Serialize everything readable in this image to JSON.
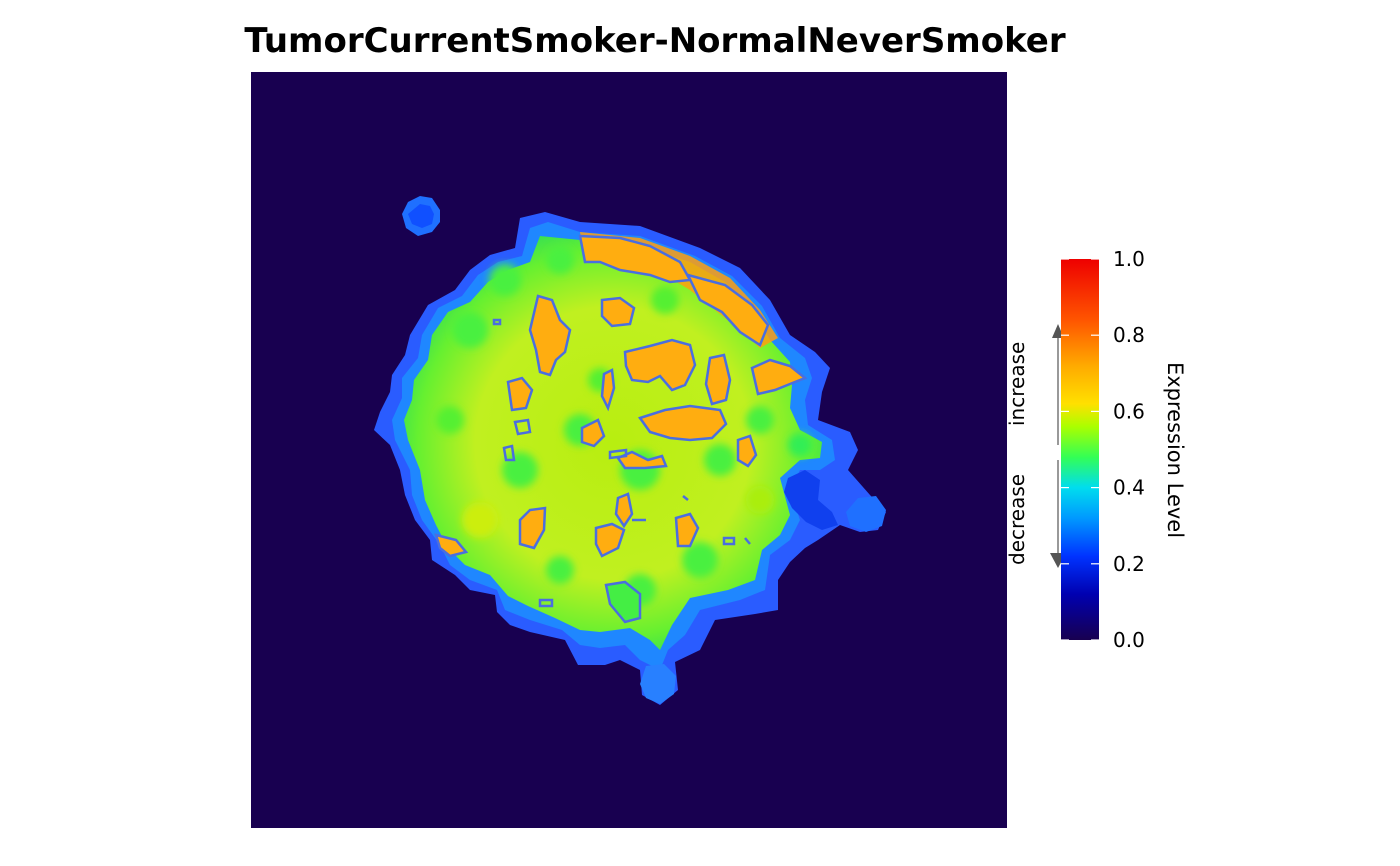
{
  "chart_data": {
    "type": "heatmap",
    "title": "TumorCurrentSmoker-NormalNeverSmoker",
    "background_color": "#180050",
    "colorbar": {
      "title": "Expression Level",
      "range": [
        0,
        1
      ],
      "ticks": [
        0.0,
        0.2,
        0.4,
        0.6,
        0.8,
        1.0
      ],
      "tick_labels": [
        "0.0",
        "0.2",
        "0.4",
        "0.6",
        "0.8",
        "1.0"
      ],
      "colors": [
        "#180050",
        "#0000cc",
        "#0066ff",
        "#00ccff",
        "#33ff33",
        "#ffe000",
        "#ff9900",
        "#ff3300",
        "#ee0000"
      ],
      "arrows": {
        "increase": "increase",
        "decrease": "decrease"
      }
    },
    "som_map": {
      "outline_color": "#4a6ee0",
      "region": "roughly circular cluster in center of map",
      "dominant_levels": {
        "core": 0.58,
        "edge": 0.3,
        "hotspots": 0.72
      }
    }
  }
}
